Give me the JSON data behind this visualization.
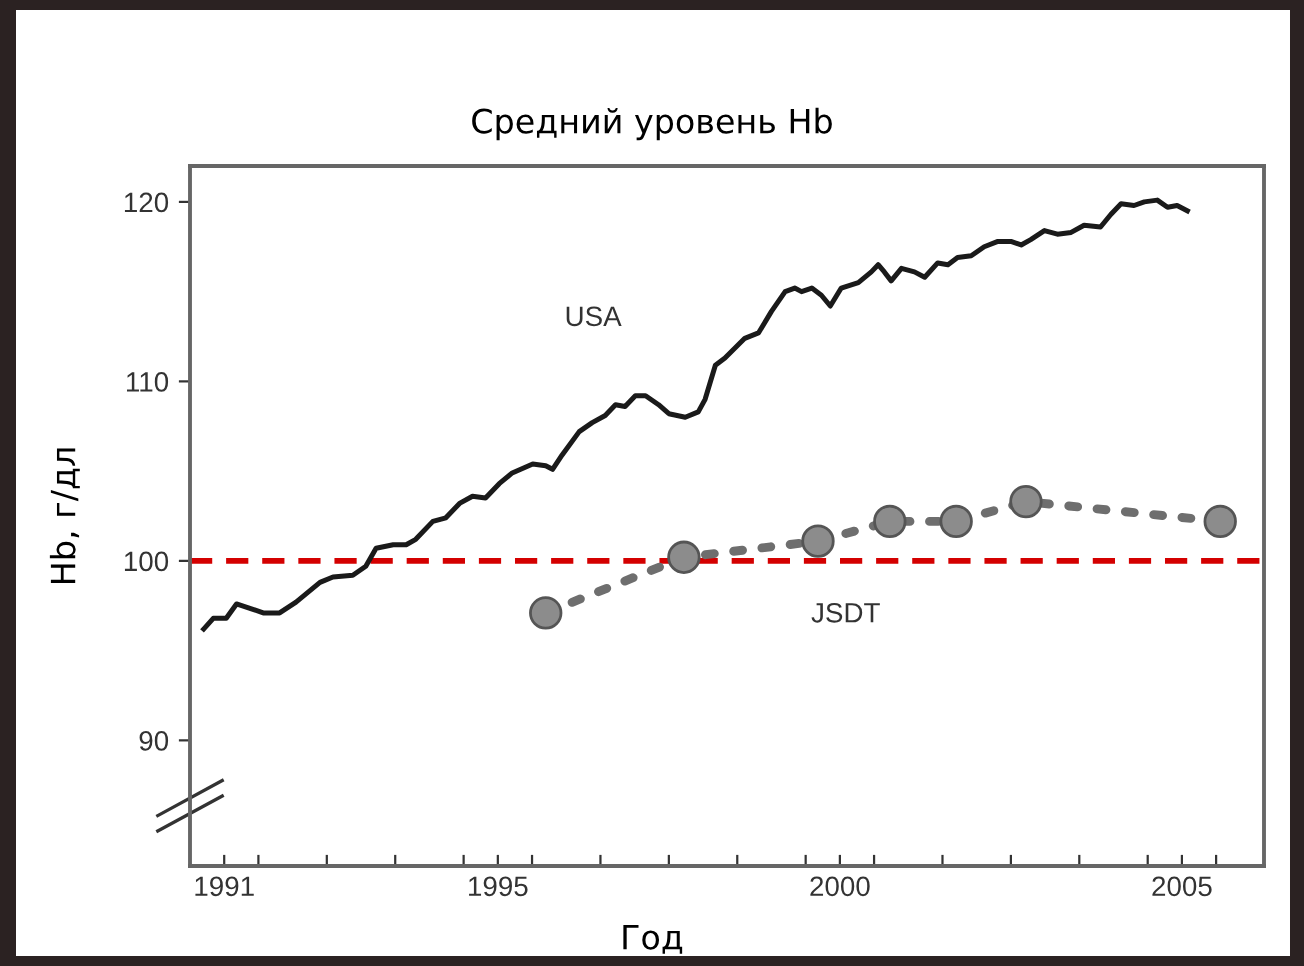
{
  "chart_data": {
    "type": "line",
    "title": "Средний уровень Hb",
    "xlabel": "Год",
    "ylabel": "Hb, г/дл",
    "xlim": [
      1990.5,
      2006.2
    ],
    "ylim": [
      83,
      122
    ],
    "xticks": [
      {
        "value": 1991,
        "label": "1991"
      },
      {
        "value": 1991.5,
        "label": null
      },
      {
        "value": 1992.5,
        "label": null
      },
      {
        "value": 1993.5,
        "label": null
      },
      {
        "value": 1994.5,
        "label": null
      },
      {
        "value": 1995,
        "label": "1995"
      },
      {
        "value": 1995.5,
        "label": null
      },
      {
        "value": 1996.5,
        "label": null
      },
      {
        "value": 1997.5,
        "label": null
      },
      {
        "value": 1998.5,
        "label": null
      },
      {
        "value": 1999.5,
        "label": null
      },
      {
        "value": 2000,
        "label": "2000"
      },
      {
        "value": 2000.5,
        "label": null
      },
      {
        "value": 2001.5,
        "label": null
      },
      {
        "value": 2002.5,
        "label": null
      },
      {
        "value": 2003.5,
        "label": null
      },
      {
        "value": 2004.5,
        "label": null
      },
      {
        "value": 2005,
        "label": "2005"
      },
      {
        "value": 2005.5,
        "label": null
      }
    ],
    "yticks": [
      90,
      100,
      110,
      120
    ],
    "grid": false,
    "legend": false,
    "ref_lines": [
      {
        "axis": "y",
        "value": 100,
        "color": "#d40000",
        "line_style": "dashed"
      }
    ],
    "series": [
      {
        "name": "USA",
        "color": "#1a1a1a",
        "line_style": "solid",
        "marker": "none",
        "x": [
          1990.7,
          1990.84,
          1991.03,
          1991.18,
          1991.42,
          1991.57,
          1991.81,
          1992.05,
          1992.4,
          1992.59,
          1992.88,
          1993.07,
          1993.22,
          1993.47,
          1993.66,
          1993.8,
          1994.05,
          1994.24,
          1994.44,
          1994.63,
          1994.82,
          1995.02,
          1995.21,
          1995.51,
          1995.7,
          1995.8,
          1995.94,
          1996.19,
          1996.38,
          1996.57,
          1996.72,
          1996.86,
          1997.01,
          1997.16,
          1997.35,
          1997.5,
          1997.74,
          1997.93,
          1998.03,
          1998.18,
          1998.32,
          1998.61,
          1998.81,
          1999.0,
          1999.2,
          1999.34,
          1999.44,
          1999.59,
          1999.73,
          1999.86,
          2000.02,
          2000.27,
          2000.46,
          2000.56,
          2000.65,
          2000.75,
          2000.9,
          2001.09,
          2001.24,
          2001.43,
          2001.58,
          2001.72,
          2001.92,
          2002.11,
          2002.31,
          2002.5,
          2002.65,
          2002.79,
          2002.99,
          2003.18,
          2003.38,
          2003.57,
          2003.81,
          2003.96,
          2004.11,
          2004.3,
          2004.45,
          2004.64,
          2004.79,
          2004.93,
          2005.08
        ],
        "values": [
          96.2,
          96.8,
          96.8,
          97.6,
          97.3,
          97.1,
          97.1,
          97.7,
          98.8,
          99.1,
          99.2,
          99.7,
          100.7,
          100.9,
          100.9,
          101.2,
          102.2,
          102.4,
          103.2,
          103.6,
          103.5,
          104.3,
          104.9,
          105.4,
          105.3,
          105.1,
          105.9,
          107.2,
          107.7,
          108.1,
          108.7,
          108.6,
          109.2,
          109.2,
          108.7,
          108.2,
          108.0,
          108.3,
          109.0,
          110.9,
          111.3,
          112.4,
          112.7,
          113.9,
          115.0,
          115.2,
          115.0,
          115.2,
          114.8,
          114.2,
          115.2,
          115.5,
          116.1,
          116.5,
          116.1,
          115.6,
          116.3,
          116.1,
          115.8,
          116.6,
          116.5,
          116.9,
          117.0,
          117.5,
          117.8,
          117.8,
          117.6,
          117.9,
          118.4,
          118.2,
          118.3,
          118.7,
          118.6,
          119.3,
          119.9,
          119.8,
          120.0,
          120.1,
          119.7,
          119.8,
          119.5
        ]
      },
      {
        "name": "JSDT",
        "color": "#6e6e6e",
        "line_style": "dotted",
        "marker": "circle",
        "x": [
          1995.7,
          1997.72,
          1999.68,
          2000.73,
          2001.7,
          2002.72,
          2005.56
        ],
        "values": [
          97.1,
          100.2,
          101.1,
          102.2,
          102.2,
          103.3,
          102.2
        ]
      }
    ]
  }
}
